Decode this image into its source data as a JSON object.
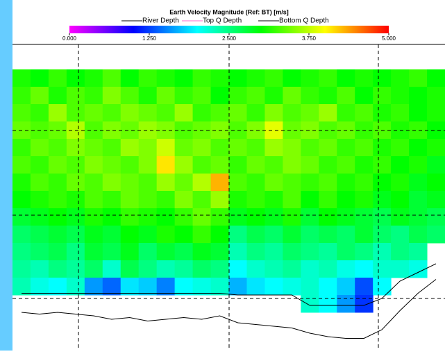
{
  "chart_data": {
    "type": "heatmap",
    "title": "Earth Velocity Magnitude (Ref: BT) [m/s]",
    "colorscale": [
      "#ff00ff",
      "#8000ff",
      "#0000ff",
      "#0080ff",
      "#00ffff",
      "#00ff80",
      "#00ff00",
      "#80ff00",
      "#ffff00",
      "#ff8000",
      "#ff0000"
    ],
    "clim": [
      0,
      5
    ],
    "cticks": [
      {
        "value": 0,
        "label": "0.000"
      },
      {
        "value": 1.25,
        "label": "1.250"
      },
      {
        "value": 2.5,
        "label": "2.500"
      },
      {
        "value": 3.75,
        "label": "3.750"
      },
      {
        "value": 5,
        "label": "5.000"
      }
    ],
    "ylim": [
      0,
      16
    ],
    "z": [
      [
        3.1,
        3.0,
        3.2,
        3.0,
        3.1,
        3.3,
        3.0,
        3.2,
        3.1,
        3.0,
        3.2,
        3.1,
        3.0,
        3.1,
        3.2,
        3.0,
        3.1,
        3.2,
        3.0,
        3.1,
        3.0,
        3.1,
        3.2,
        3.0
      ],
      [
        3.2,
        3.4,
        3.1,
        3.3,
        3.2,
        3.5,
        3.3,
        3.1,
        3.4,
        3.2,
        3.3,
        3.0,
        3.2,
        3.3,
        3.1,
        3.4,
        3.2,
        3.1,
        3.3,
        3.0,
        3.2,
        3.1,
        3.0,
        3.1
      ],
      [
        3.3,
        3.2,
        3.6,
        3.3,
        3.4,
        3.3,
        3.5,
        3.4,
        3.3,
        3.6,
        3.2,
        3.3,
        3.4,
        3.2,
        3.5,
        3.3,
        3.4,
        3.6,
        3.2,
        3.3,
        3.1,
        3.2,
        3.0,
        3.1
      ],
      [
        3.4,
        3.3,
        3.4,
        3.7,
        3.3,
        3.5,
        3.4,
        3.6,
        3.5,
        3.3,
        3.4,
        3.5,
        3.3,
        3.5,
        3.9,
        3.4,
        3.5,
        3.3,
        3.4,
        3.2,
        3.3,
        3.1,
        3.2,
        3.0
      ],
      [
        3.2,
        3.4,
        3.3,
        3.5,
        3.4,
        3.3,
        3.6,
        3.5,
        3.8,
        3.4,
        3.5,
        3.3,
        3.4,
        3.3,
        3.6,
        3.5,
        3.3,
        3.4,
        3.2,
        3.3,
        3.1,
        3.2,
        3.0,
        3.1
      ],
      [
        3.3,
        3.2,
        3.4,
        3.3,
        3.5,
        3.4,
        3.3,
        3.5,
        4.1,
        3.6,
        3.3,
        3.4,
        3.2,
        3.4,
        3.3,
        3.5,
        3.4,
        3.2,
        3.3,
        3.1,
        3.2,
        3.0,
        3.1,
        2.9
      ],
      [
        3.1,
        3.3,
        3.2,
        3.4,
        3.3,
        3.5,
        3.4,
        3.3,
        3.6,
        3.4,
        3.7,
        4.3,
        3.3,
        3.2,
        3.4,
        3.3,
        3.2,
        3.3,
        3.1,
        3.2,
        3.0,
        3.1,
        2.9,
        3.0
      ],
      [
        3.0,
        3.1,
        3.2,
        3.1,
        3.3,
        3.2,
        3.4,
        3.3,
        3.2,
        3.5,
        3.3,
        3.6,
        3.1,
        3.2,
        3.1,
        3.3,
        3.0,
        3.2,
        3.0,
        3.1,
        2.9,
        3.0,
        2.8,
        2.9
      ],
      [
        2.8,
        2.9,
        3.0,
        2.9,
        3.1,
        3.0,
        3.2,
        3.1,
        3.0,
        3.2,
        3.4,
        3.2,
        2.9,
        3.0,
        2.9,
        3.1,
        2.8,
        3.0,
        2.9,
        2.8,
        2.7,
        2.9,
        2.8,
        2.7
      ],
      [
        2.6,
        2.7,
        2.8,
        2.7,
        2.9,
        2.8,
        3.0,
        2.9,
        3.1,
        3.0,
        3.2,
        3.0,
        2.5,
        2.7,
        2.6,
        2.8,
        2.6,
        2.7,
        2.6,
        2.8,
        2.6,
        2.5,
        2.7,
        2.6
      ],
      [
        2.5,
        2.6,
        2.7,
        2.5,
        2.8,
        2.7,
        2.9,
        2.6,
        2.8,
        2.7,
        2.9,
        2.8,
        2.3,
        2.5,
        2.4,
        2.6,
        2.5,
        2.4,
        2.6,
        2.5,
        2.3,
        2.5,
        2.4,
        null
      ],
      [
        2.4,
        2.3,
        2.5,
        2.4,
        2.6,
        2.2,
        2.7,
        2.5,
        2.3,
        2.4,
        2.6,
        2.5,
        2.0,
        2.2,
        2.3,
        2.4,
        2.2,
        2.3,
        2.1,
        2.0,
        2.2,
        2.2,
        2.1,
        null
      ],
      [
        2.3,
        2.1,
        2.0,
        2.2,
        1.6,
        1.4,
        1.9,
        1.8,
        1.5,
        2.0,
        2.1,
        2.2,
        1.7,
        1.9,
        2.0,
        2.1,
        2.2,
        2.0,
        1.8,
        1.3,
        2.0,
        null,
        null,
        null
      ],
      [
        null,
        null,
        null,
        null,
        null,
        null,
        null,
        null,
        null,
        null,
        null,
        null,
        null,
        null,
        null,
        null,
        2.2,
        2.0,
        1.6,
        1.2,
        null,
        null,
        null,
        null
      ]
    ],
    "series": [
      {
        "name": "River Depth",
        "color": "#000000",
        "values": [
          14.0,
          14.1,
          14.0,
          14.1,
          14.2,
          14.4,
          14.3,
          14.5,
          14.4,
          14.3,
          14.4,
          14.2,
          14.6,
          14.7,
          14.8,
          14.9,
          15.2,
          15.4,
          15.5,
          15.5,
          15.0,
          13.9,
          12.9,
          12.1
        ]
      },
      {
        "name": "Top Q Depth",
        "color": "#ff66cc",
        "values": [
          null,
          null,
          null,
          null,
          null,
          null,
          null,
          null,
          null,
          null,
          null,
          null,
          null,
          null,
          null,
          null,
          null,
          null,
          null,
          null,
          null,
          null,
          null,
          null
        ]
      },
      {
        "name": "Bottom Q Depth",
        "color": "#000000",
        "values": [
          12.9,
          12.9,
          12.9,
          12.9,
          12.9,
          12.9,
          12.9,
          12.9,
          12.9,
          12.9,
          12.9,
          12.9,
          13.0,
          13.0,
          13.0,
          13.0,
          13.6,
          13.6,
          13.6,
          13.6,
          13.2,
          12.2,
          11.7,
          11.2
        ]
      }
    ]
  }
}
